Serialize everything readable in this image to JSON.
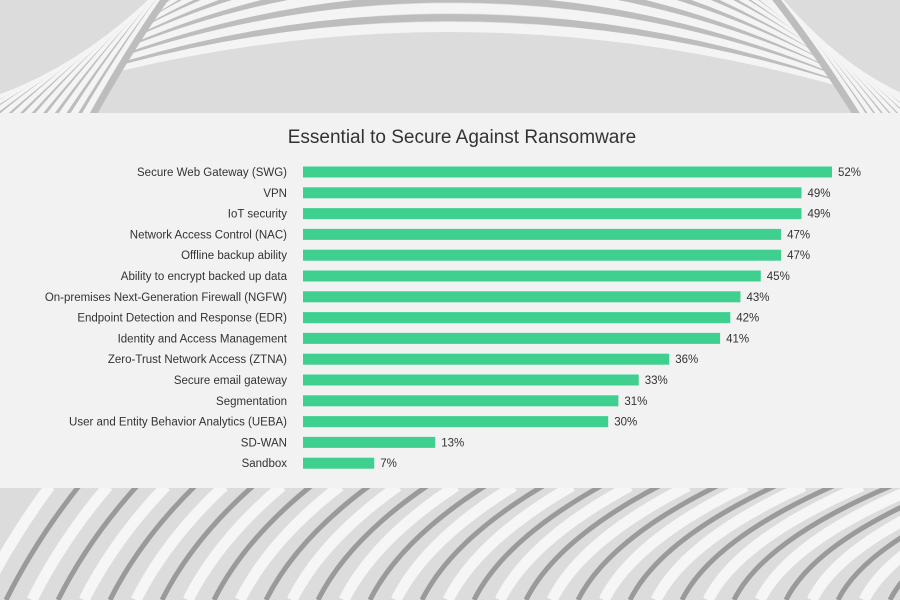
{
  "chart_data": {
    "type": "bar",
    "orientation": "horizontal",
    "title": "Essential to Secure Against Ransomware",
    "categories": [
      "Secure Web Gateway (SWG)",
      "VPN",
      "IoT security",
      "Network Access Control (NAC)",
      "Offline backup ability",
      "Ability to encrypt backed up data",
      "On-premises Next-Generation Firewall (NGFW)",
      "Endpoint Detection and Response (EDR)",
      "Identity and Access Management",
      "Zero-Trust Network Access (ZTNA)",
      "Secure email gateway",
      "Segmentation",
      "User and Entity Behavior Analytics (UEBA)",
      "SD-WAN",
      "Sandbox"
    ],
    "values": [
      52,
      49,
      49,
      47,
      47,
      45,
      43,
      42,
      41,
      36,
      33,
      31,
      30,
      13,
      7
    ],
    "value_labels": [
      "52%",
      "49%",
      "49%",
      "47%",
      "47%",
      "45%",
      "43%",
      "42%",
      "41%",
      "36%",
      "33%",
      "31%",
      "30%",
      "13%",
      "7%"
    ],
    "xlim": [
      0,
      52
    ],
    "bar_color": "#3fd08f",
    "grid": false,
    "legend": "none"
  },
  "colors": {
    "panel": "#f2f2f2",
    "text": "#333333",
    "background_photo": "#d9d9d9"
  }
}
